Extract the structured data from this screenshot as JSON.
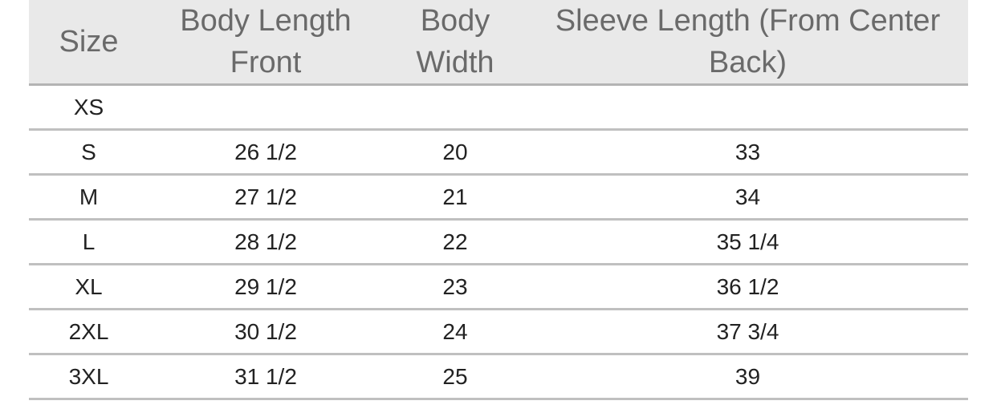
{
  "table": {
    "header": [
      "Size",
      "Body Length Front",
      "Body Width",
      "Sleeve Length (From Center Back)"
    ],
    "rows": [
      [
        "XS"
      ],
      [
        "S",
        "26 1/2",
        "20",
        "33"
      ],
      [
        "M",
        "27 1/2",
        "21",
        "34"
      ],
      [
        "L",
        "28 1/2",
        "22",
        "35 1/4"
      ],
      [
        "XL",
        "29 1/2",
        "23",
        "36 1/2"
      ],
      [
        "2XL",
        "30 1/2",
        "24",
        "37 3/4"
      ],
      [
        "3XL",
        "31 1/2",
        "25",
        "39"
      ]
    ]
  }
}
